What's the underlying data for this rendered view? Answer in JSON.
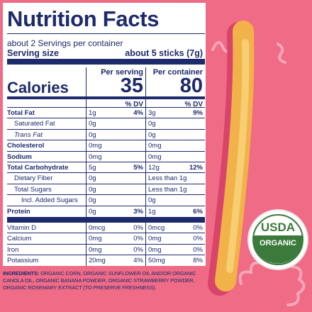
{
  "header": {
    "title": "Nutrition Facts",
    "servings": "about 2 Servings per container",
    "serving_size_label": "Serving size",
    "serving_size": "about 5 sticks (7g)"
  },
  "columns": {
    "serving": "Per serving",
    "container": "Per container",
    "dv": "% DV"
  },
  "calories": {
    "label": "Calories",
    "serving": 35,
    "container": 80
  },
  "nutrients": [
    {
      "name": "Total Fat",
      "serving": "1g",
      "serving_dv": "4%",
      "container": "3g",
      "container_dv": "9%"
    },
    {
      "name": "Saturated Fat",
      "serving": "0g",
      "container": "0g"
    },
    {
      "name": "Trans Fat",
      "serving": "0g",
      "container": "0g"
    },
    {
      "name": "Cholesterol",
      "serving": "0mg",
      "container": "0mg"
    },
    {
      "name": "Sodium",
      "serving": "0mg",
      "container": "0mg"
    },
    {
      "name": "Total Carbohydrate",
      "serving": "5g",
      "serving_dv": "5%",
      "container": "12g",
      "container_dv": "12%"
    },
    {
      "name": "Dietary Fiber",
      "serving": "0g",
      "container": "Less than 1g"
    },
    {
      "name": "Total Sugars",
      "serving": "0g",
      "container": "Less than 1g"
    },
    {
      "name": "Incl. Added Sugars",
      "serving": "0g",
      "container": "0g"
    },
    {
      "name": "Protein",
      "serving": "0g",
      "serving_dv": "3%",
      "container": "1g",
      "container_dv": "6%"
    }
  ],
  "vitamins": [
    {
      "name": "Vitamin D",
      "serving": "0mcg",
      "serving_dv": "0%",
      "container": "0mcg",
      "container_dv": "0%"
    },
    {
      "name": "Calcium",
      "serving": "0mg",
      "serving_dv": "0%",
      "container": "0mg",
      "container_dv": "0%"
    },
    {
      "name": "Iron",
      "serving": "0mg",
      "serving_dv": "0%",
      "container": "0mg",
      "container_dv": "0%"
    },
    {
      "name": "Potassium",
      "serving": "20mg",
      "serving_dv": "4%",
      "container": "50mg",
      "container_dv": "8%"
    }
  ],
  "ingredients": {
    "label": "INGREDIENTS:",
    "text": "ORGANIC CORN, ORGANIC SUNFLOWER OIL AND/OR ORGANIC CANOLA OIL, ORGANIC BANANA POWDER, ORGANIC STRAWBERRY POWDER, ORGANIC ROSEMARY EXTRACT (TO PRESERVE FRESHNESS)."
  },
  "seal": {
    "top": "USDA",
    "bottom": "ORGANIC"
  }
}
